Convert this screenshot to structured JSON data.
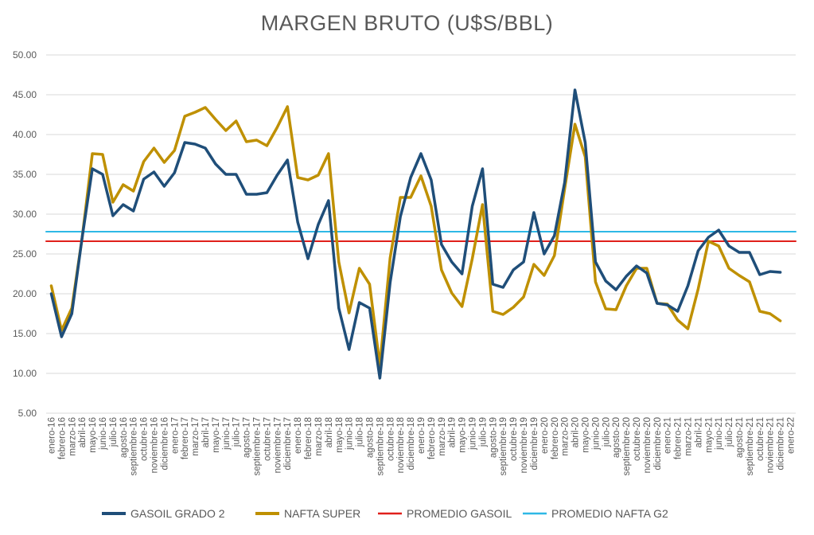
{
  "chart_data": {
    "type": "line",
    "title": "MARGEN BRUTO (U$S/BBL)",
    "xlabel": "",
    "ylabel": "",
    "ylim": [
      5,
      50
    ],
    "yticks": [
      "5.00",
      "10.00",
      "15.00",
      "20.00",
      "25.00",
      "30.00",
      "35.00",
      "40.00",
      "45.00",
      "50.00"
    ],
    "grid": true,
    "legend_position": "bottom",
    "categories": [
      "enero-16",
      "febrero-16",
      "marzo-16",
      "abril-16",
      "mayo-16",
      "junio-16",
      "julio-16",
      "agosto-16",
      "septiembre-16",
      "octubre-16",
      "noviembre-16",
      "diciembre-16",
      "enero-17",
      "febrero-17",
      "marzo-17",
      "abril-17",
      "mayo-17",
      "junio-17",
      "julio-17",
      "agosto-17",
      "septiembre-17",
      "octubre-17",
      "noviembre-17",
      "diciembre-17",
      "enero-18",
      "febrero-18",
      "marzo-18",
      "abril-18",
      "mayo-18",
      "junio-18",
      "julio-18",
      "agosto-18",
      "septiembre-18",
      "octubre-18",
      "noviembre-18",
      "diciembre-18",
      "enero-19",
      "febrero-19",
      "marzo-19",
      "abril-19",
      "mayo-19",
      "junio-19",
      "julio-19",
      "agosto-19",
      "septiembre-19",
      "octubre-19",
      "noviembre-19",
      "diciembre-19",
      "enero-20",
      "febrero-20",
      "marzo-20",
      "abril-20",
      "mayo-20",
      "junio-20",
      "julio-20",
      "agosto-20",
      "septiembre-20",
      "octubre-20",
      "noviembre-20",
      "diciembre-20",
      "enero-21",
      "febrero-21",
      "marzo-21",
      "abril-21",
      "mayo-21",
      "junio-21",
      "julio-21",
      "agosto-21",
      "septiembre-21",
      "octubre-21",
      "noviembre-21",
      "diciembre-21",
      "enero-22"
    ],
    "series": [
      {
        "name": "GASOIL GRADO 2",
        "color": "#1f4e79",
        "width": 3.5,
        "values": [
          20.0,
          14.6,
          17.5,
          27.0,
          35.7,
          35.0,
          29.8,
          31.2,
          30.4,
          34.4,
          35.3,
          33.5,
          35.2,
          39.0,
          38.8,
          38.3,
          36.3,
          35.0,
          35.0,
          32.5,
          32.5,
          32.7,
          34.9,
          36.8,
          29.0,
          24.4,
          28.7,
          31.7,
          18.2,
          13.0,
          18.9,
          18.2,
          9.4,
          21.4,
          29.7,
          34.6,
          37.6,
          34.3,
          26.2,
          24.0,
          22.5,
          31.0,
          35.7,
          21.2,
          20.8,
          23.0,
          24.0,
          30.2,
          25.0,
          27.3,
          34.0,
          45.6,
          39.0,
          24.0,
          21.6,
          20.5,
          22.2,
          23.5,
          22.6,
          18.8,
          18.6,
          17.8,
          21.0,
          25.4,
          27.1,
          28.0,
          26.0,
          25.2,
          25.2,
          22.4,
          22.8,
          22.7,
          null
        ]
      },
      {
        "name": "NAFTA SUPER",
        "color": "#bf9000",
        "width": 3.5,
        "values": [
          21.0,
          15.4,
          18.2,
          27.0,
          37.6,
          37.5,
          31.5,
          33.7,
          32.9,
          36.6,
          38.3,
          36.5,
          38.0,
          42.3,
          42.8,
          43.4,
          41.9,
          40.5,
          41.7,
          39.1,
          39.3,
          38.6,
          40.9,
          43.5,
          34.6,
          34.3,
          34.9,
          37.6,
          24.0,
          17.6,
          23.2,
          21.2,
          11.0,
          24.5,
          32.1,
          32.1,
          34.8,
          31.0,
          23.0,
          20.1,
          18.4,
          24.4,
          31.2,
          17.8,
          17.4,
          18.3,
          19.6,
          23.7,
          22.3,
          24.8,
          33.2,
          41.3,
          37.2,
          21.5,
          18.1,
          18.0,
          21.0,
          23.2,
          23.2,
          18.8,
          18.7,
          16.7,
          15.6,
          20.6,
          26.6,
          26.0,
          23.2,
          22.3,
          21.5,
          17.8,
          17.5,
          16.6,
          null
        ]
      },
      {
        "name": "PROMEDIO GASOIL",
        "color": "#e0201b",
        "width": 2,
        "values": [
          26.6,
          26.6,
          26.6,
          26.6,
          26.6,
          26.6,
          26.6,
          26.6,
          26.6,
          26.6,
          26.6,
          26.6,
          26.6,
          26.6,
          26.6,
          26.6,
          26.6,
          26.6,
          26.6,
          26.6,
          26.6,
          26.6,
          26.6,
          26.6,
          26.6,
          26.6,
          26.6,
          26.6,
          26.6,
          26.6,
          26.6,
          26.6,
          26.6,
          26.6,
          26.6,
          26.6,
          26.6,
          26.6,
          26.6,
          26.6,
          26.6,
          26.6,
          26.6,
          26.6,
          26.6,
          26.6,
          26.6,
          26.6,
          26.6,
          26.6,
          26.6,
          26.6,
          26.6,
          26.6,
          26.6,
          26.6,
          26.6,
          26.6,
          26.6,
          26.6,
          26.6,
          26.6,
          26.6,
          26.6,
          26.6,
          26.6,
          26.6,
          26.6,
          26.6,
          26.6,
          26.6,
          26.6,
          26.6
        ]
      },
      {
        "name": "PROMEDIO NAFTA G2",
        "color": "#2eb8e6",
        "width": 2,
        "values": [
          27.8,
          27.8,
          27.8,
          27.8,
          27.8,
          27.8,
          27.8,
          27.8,
          27.8,
          27.8,
          27.8,
          27.8,
          27.8,
          27.8,
          27.8,
          27.8,
          27.8,
          27.8,
          27.8,
          27.8,
          27.8,
          27.8,
          27.8,
          27.8,
          27.8,
          27.8,
          27.8,
          27.8,
          27.8,
          27.8,
          27.8,
          27.8,
          27.8,
          27.8,
          27.8,
          27.8,
          27.8,
          27.8,
          27.8,
          27.8,
          27.8,
          27.8,
          27.8,
          27.8,
          27.8,
          27.8,
          27.8,
          27.8,
          27.8,
          27.8,
          27.8,
          27.8,
          27.8,
          27.8,
          27.8,
          27.8,
          27.8,
          27.8,
          27.8,
          27.8,
          27.8,
          27.8,
          27.8,
          27.8,
          27.8,
          27.8,
          27.8,
          27.8,
          27.8,
          27.8,
          27.8,
          27.8,
          27.8
        ]
      }
    ],
    "gridline_color": "#d9d9d9",
    "text_color": "#595959"
  }
}
